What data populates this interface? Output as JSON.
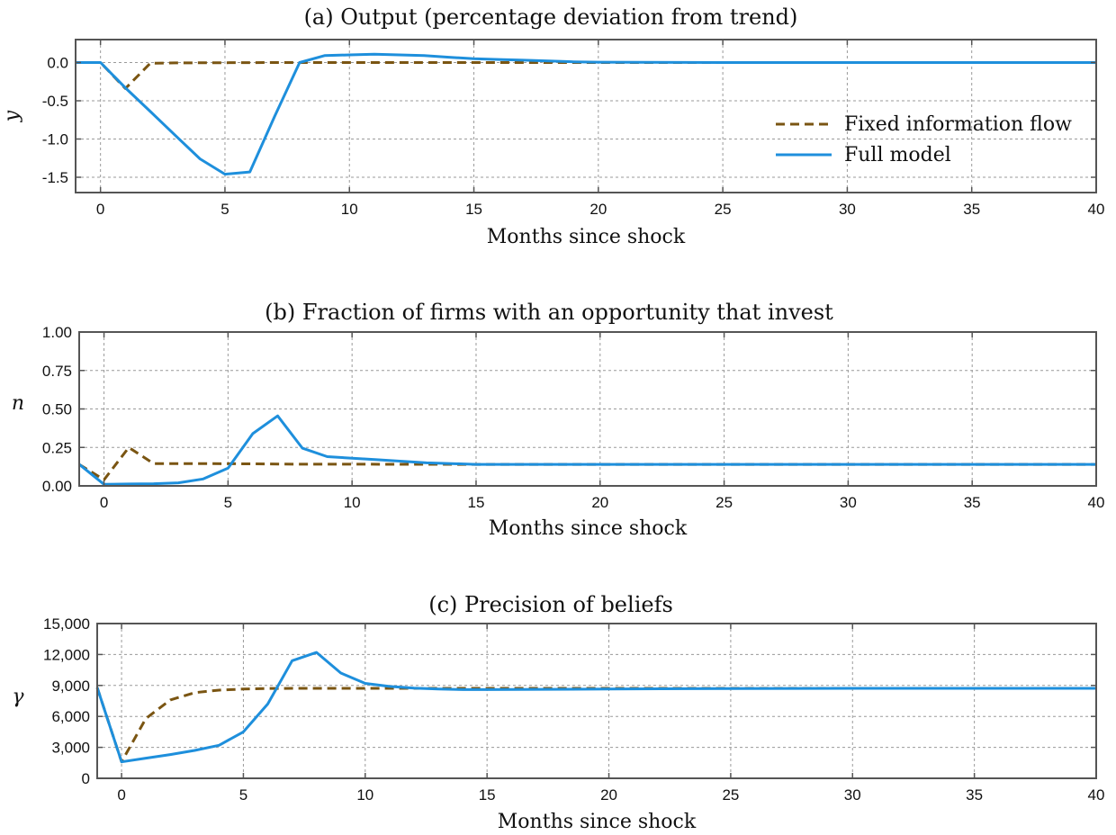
{
  "colors": {
    "fixed": "#7a5512",
    "full": "#1e8fdc"
  },
  "legend": [
    {
      "label": "Fixed information flow",
      "style": "dashed",
      "color": "#7a5512"
    },
    {
      "label": "Full model",
      "style": "solid",
      "color": "#1e8fdc"
    }
  ],
  "chart_data": [
    {
      "type": "line",
      "title": "(a) Output (percentage deviation from trend)",
      "xlabel": "Months since shock",
      "ylabel": "y",
      "xlim": [
        -1,
        40
      ],
      "ylim": [
        -1.7,
        0.3
      ],
      "xticks": [
        0,
        5,
        10,
        15,
        20,
        25,
        30,
        35,
        40
      ],
      "yticks": [
        0.0,
        -0.5,
        -1.0,
        -1.5
      ],
      "ytick_labels": [
        "0.0",
        "-0.5",
        "-1.0",
        "-1.5"
      ],
      "grid": true,
      "legend_position": "right",
      "series": [
        {
          "name": "Fixed information flow",
          "style": "dashed",
          "x": [
            -1,
            0,
            1,
            2,
            3,
            4,
            5,
            6,
            7,
            8,
            10,
            15,
            20,
            25,
            30,
            35,
            40
          ],
          "y": [
            0,
            0,
            -0.34,
            -0.01,
            -0.005,
            -0.003,
            -0.002,
            -0.001,
            0,
            0,
            0,
            0,
            0,
            0,
            0,
            0,
            0
          ]
        },
        {
          "name": "Full model",
          "style": "solid",
          "x": [
            -1,
            0,
            1,
            2,
            3,
            4,
            5,
            6,
            7,
            8,
            9,
            10,
            11,
            12,
            13,
            14,
            15,
            16,
            17,
            18,
            19,
            20,
            25,
            30,
            35,
            40
          ],
          "y": [
            0,
            0,
            -0.33,
            -0.64,
            -0.95,
            -1.26,
            -1.46,
            -1.43,
            -0.7,
            0.0,
            0.09,
            0.1,
            0.11,
            0.1,
            0.09,
            0.07,
            0.05,
            0.04,
            0.03,
            0.02,
            0.01,
            0.005,
            0,
            0,
            0,
            0
          ]
        }
      ]
    },
    {
      "type": "line",
      "title": "(b) Fraction of firms with an opportunity that invest",
      "xlabel": "Months since shock",
      "ylabel": "n",
      "xlim": [
        -1,
        40
      ],
      "ylim": [
        0,
        1
      ],
      "xticks": [
        0,
        5,
        10,
        15,
        20,
        25,
        30,
        35,
        40
      ],
      "yticks": [
        0,
        0.25,
        0.5,
        0.75,
        1.0
      ],
      "ytick_labels": [
        "0.00",
        "0.25",
        "0.50",
        "0.75",
        "1.00"
      ],
      "grid": true,
      "series": [
        {
          "name": "Fixed information flow",
          "style": "dashed",
          "x": [
            -1,
            0,
            1,
            2,
            3,
            4,
            5,
            6,
            7,
            8,
            10,
            15,
            20,
            25,
            30,
            35,
            40
          ],
          "y": [
            0.14,
            0.04,
            0.25,
            0.145,
            0.145,
            0.145,
            0.144,
            0.143,
            0.142,
            0.141,
            0.141,
            0.14,
            0.14,
            0.14,
            0.14,
            0.14,
            0.14
          ]
        },
        {
          "name": "Full model",
          "style": "solid",
          "x": [
            -1,
            0,
            1,
            2,
            3,
            4,
            5,
            6,
            7,
            8,
            9,
            10,
            11,
            12,
            13,
            14,
            15,
            20,
            25,
            30,
            35,
            40
          ],
          "y": [
            0.14,
            0.01,
            0.012,
            0.014,
            0.02,
            0.045,
            0.115,
            0.34,
            0.455,
            0.245,
            0.19,
            0.18,
            0.17,
            0.16,
            0.15,
            0.145,
            0.14,
            0.14,
            0.14,
            0.14,
            0.14,
            0.14
          ]
        }
      ]
    },
    {
      "type": "line",
      "title": "(c) Precision of beliefs",
      "xlabel": "Months since shock",
      "ylabel": "γ",
      "xlim": [
        -1,
        40
      ],
      "ylim": [
        0,
        15000
      ],
      "xticks": [
        0,
        5,
        10,
        15,
        20,
        25,
        30,
        35,
        40
      ],
      "yticks": [
        0,
        3000,
        6000,
        9000,
        12000,
        15000
      ],
      "ytick_labels": [
        "0",
        "3,000",
        "6,000",
        "9,000",
        "12,000",
        "15,000"
      ],
      "grid": true,
      "series": [
        {
          "name": "Fixed information flow",
          "style": "dashed",
          "x": [
            -1,
            0,
            1,
            2,
            3,
            4,
            5,
            6,
            7,
            8,
            10,
            15,
            20,
            25,
            30,
            35,
            40
          ],
          "y": [
            8800,
            1600,
            5800,
            7600,
            8300,
            8550,
            8650,
            8700,
            8720,
            8720,
            8720,
            8720,
            8720,
            8720,
            8720,
            8720,
            8720
          ]
        },
        {
          "name": "Full model",
          "style": "solid",
          "x": [
            -1,
            0,
            1,
            2,
            3,
            4,
            5,
            6,
            7,
            8,
            9,
            10,
            11,
            12,
            13,
            14,
            15,
            20,
            25,
            30,
            35,
            40
          ],
          "y": [
            8800,
            1600,
            1950,
            2300,
            2700,
            3200,
            4500,
            7200,
            11400,
            12200,
            10200,
            9200,
            8900,
            8750,
            8650,
            8600,
            8600,
            8650,
            8700,
            8720,
            8720,
            8720
          ]
        }
      ]
    }
  ]
}
